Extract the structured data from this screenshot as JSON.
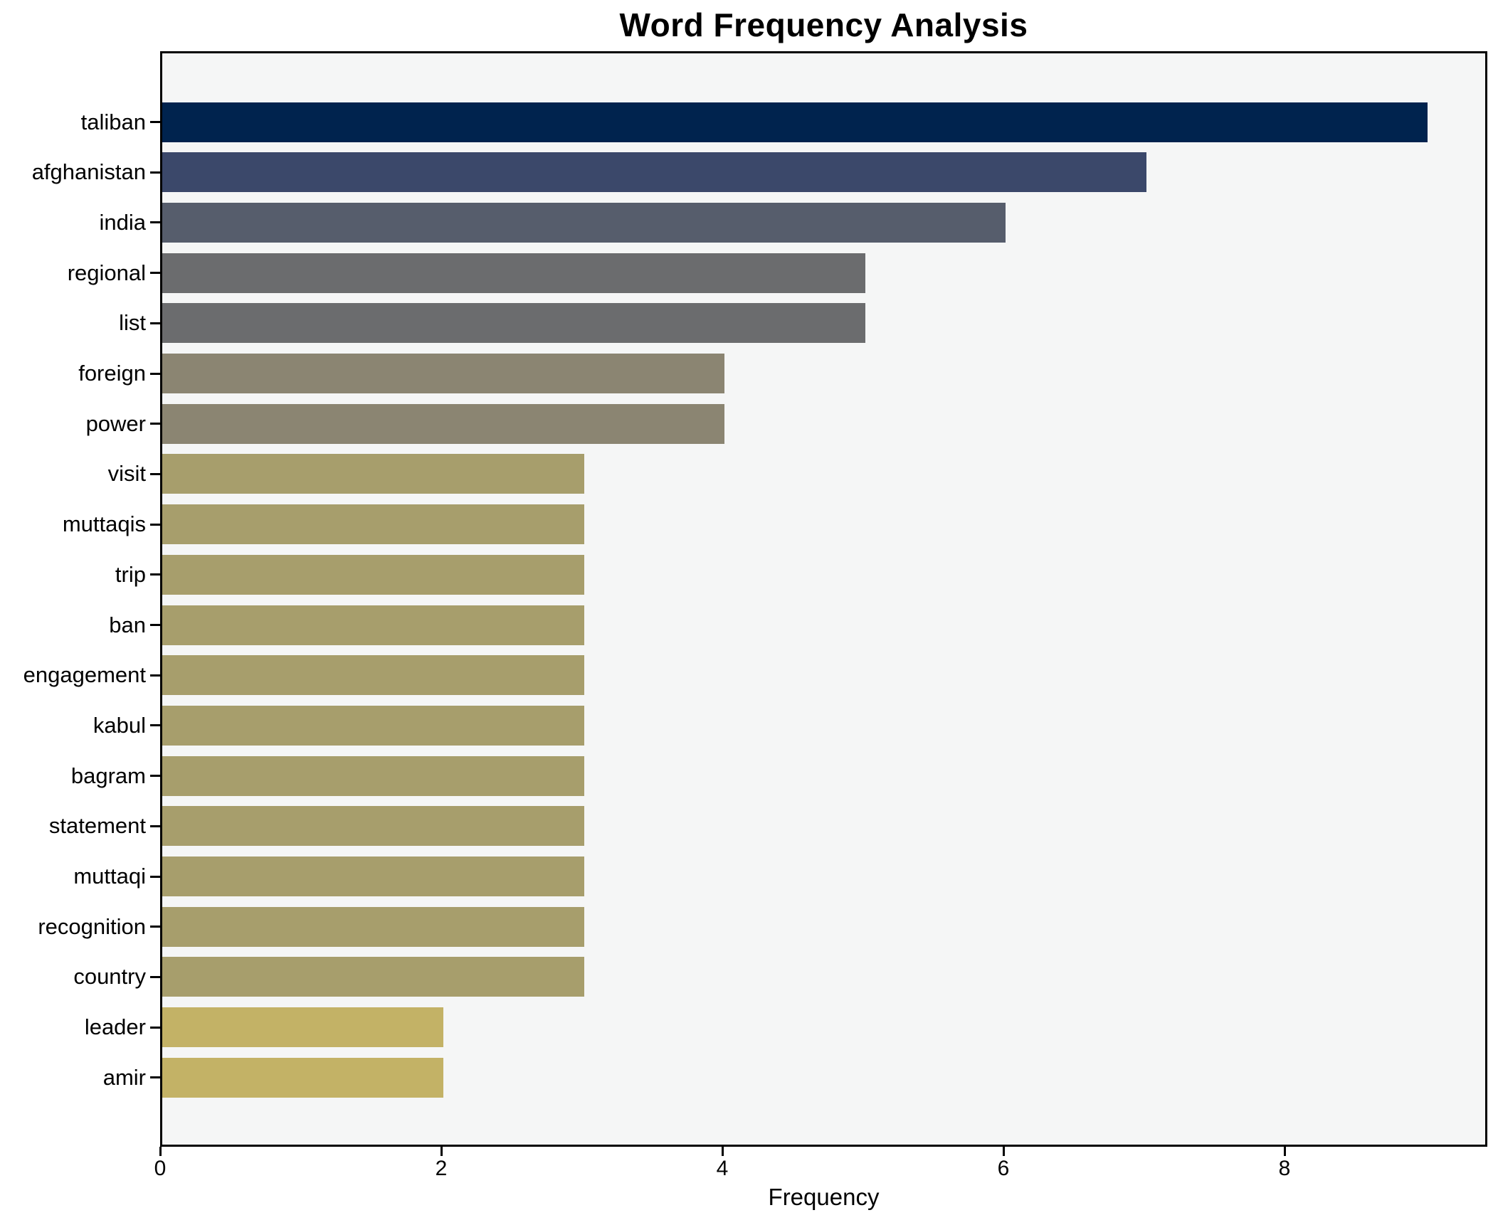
{
  "title": "Word Frequency Analysis",
  "axis": {
    "xlabel": "Frequency",
    "xtick_labels": [
      "0",
      "2",
      "4",
      "6",
      "8"
    ]
  },
  "chart_data": {
    "type": "bar",
    "orientation": "horizontal",
    "title": "Word Frequency Analysis",
    "xlabel": "Frequency",
    "ylabel": "",
    "categories": [
      "taliban",
      "afghanistan",
      "india",
      "regional",
      "list",
      "foreign",
      "power",
      "visit",
      "muttaqis",
      "trip",
      "ban",
      "engagement",
      "kabul",
      "bagram",
      "statement",
      "muttaqi",
      "recognition",
      "country",
      "leader",
      "amir"
    ],
    "values": [
      9,
      7,
      6,
      5,
      5,
      4,
      4,
      3,
      3,
      3,
      3,
      3,
      3,
      3,
      3,
      3,
      3,
      3,
      2,
      2
    ],
    "bar_colors": [
      "#00234e",
      "#3b486a",
      "#565d6c",
      "#6b6c6e",
      "#6b6c6e",
      "#8b8572",
      "#8b8572",
      "#a79e6c",
      "#a79e6c",
      "#a79e6c",
      "#a79e6c",
      "#a79e6c",
      "#a79e6c",
      "#a79e6c",
      "#a79e6c",
      "#a79e6c",
      "#a79e6c",
      "#a79e6c",
      "#c3b266",
      "#c3b266"
    ],
    "xlim": [
      0,
      9.45
    ],
    "xticks": [
      0,
      2,
      4,
      6,
      8
    ],
    "grid": false,
    "legend_position": "none",
    "plot_background": "#f5f6f6",
    "figure_background": "#ffffff",
    "spine_color": "#000000",
    "text_color": "#000000"
  }
}
